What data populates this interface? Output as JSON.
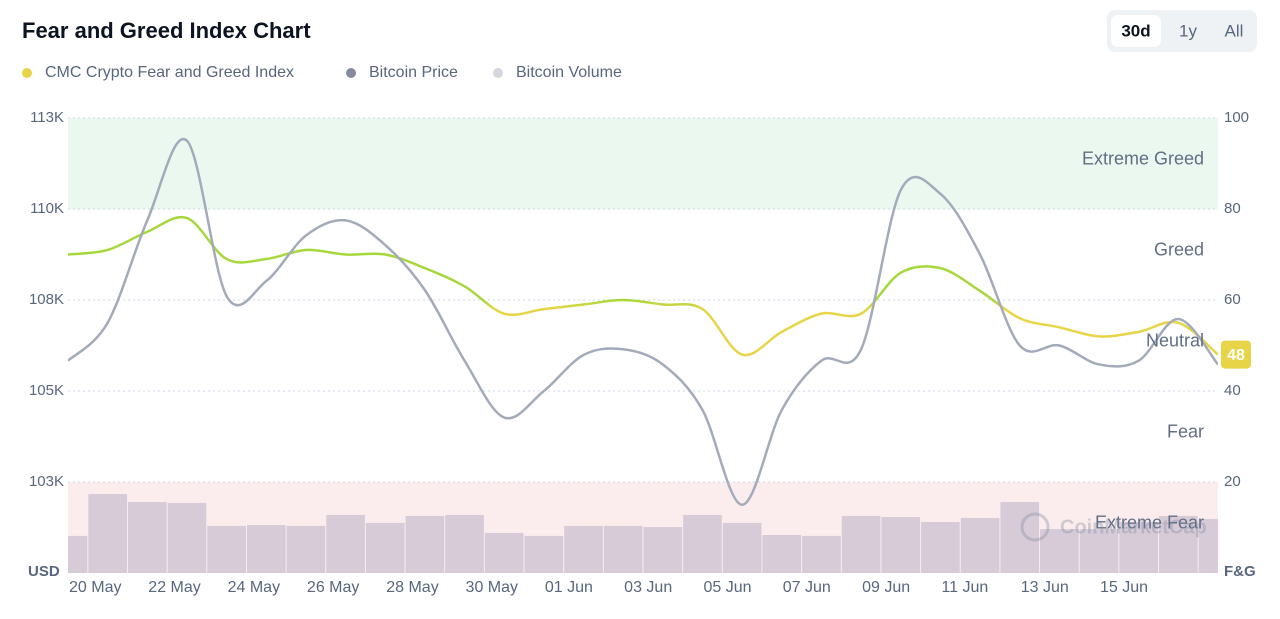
{
  "title": "Fear and Greed Index Chart",
  "range_buttons": [
    "30d",
    "1y",
    "All"
  ],
  "selected_range": 0,
  "chart_data": {
    "type": "line",
    "categories": [
      "20 May",
      null,
      "22 May",
      null,
      "24 May",
      null,
      "26 May",
      null,
      "28 May",
      null,
      "30 May",
      null,
      "01 Jun",
      null,
      "03 Jun",
      null,
      "05 Jun",
      null,
      "07 Jun",
      null,
      "09 Jun",
      null,
      "11 Jun",
      null,
      "13 Jun",
      null,
      "15 Jun",
      null,
      null,
      null
    ],
    "series": [
      {
        "name": "CMC Crypto Fear and Greed Index",
        "color": "#e8d547",
        "greed_color": "#a6d83c",
        "axis": "y2",
        "values": [
          70,
          71,
          75,
          78,
          69,
          69,
          71,
          70,
          70,
          67,
          63,
          57,
          58,
          59,
          60,
          59,
          58,
          48,
          53,
          57,
          57,
          66,
          67,
          62,
          56,
          54,
          52,
          53,
          55,
          48
        ]
      },
      {
        "name": "Bitcoin Price",
        "color": "#a3abbb",
        "legend_color": "#858b9e",
        "values": [
          106200,
          107200,
          109900,
          112000,
          107900,
          108300,
          109500,
          109900,
          109250,
          108060,
          106200,
          104700,
          105400,
          106350,
          106500,
          106100,
          104900,
          102400,
          104900,
          106200,
          106500,
          110700,
          110600,
          109000,
          106600,
          106600,
          106100,
          106200,
          107300,
          106100
        ]
      },
      {
        "name": "Bitcoin Volume",
        "type": "bar",
        "color": "#d7cbd8",
        "legend_color": "#d3d7e0",
        "axis": "y3",
        "values": [
          16.3,
          34.7,
          31.2,
          30.8,
          20.7,
          21.1,
          20.7,
          25.5,
          22,
          25.1,
          25.5,
          17.6,
          16.3,
          20.7,
          20.7,
          20.2,
          25.5,
          22,
          16.7,
          16.3,
          25.1,
          24.6,
          22.4,
          24.2,
          31.2,
          19.3,
          19.3,
          22.4,
          25.1,
          23.7
        ]
      }
    ],
    "ylim": [
      100600,
      112600
    ],
    "yticks": [
      {
        "value": 103000,
        "label": "103K"
      },
      {
        "value": 105400,
        "label": "105K"
      },
      {
        "value": 107800,
        "label": "108K"
      },
      {
        "value": 110200,
        "label": "110K"
      },
      {
        "value": 112600,
        "label": "113K"
      }
    ],
    "y2lim": [
      0,
      100
    ],
    "y2ticks": [
      20,
      40,
      60,
      80,
      100
    ],
    "y3lim": [
      0,
      200
    ],
    "zones": [
      "Extreme Fear",
      "Fear",
      "Neutral",
      "Greed",
      "Extreme Greed"
    ],
    "zone_colors": [
      "#fbeced",
      null,
      null,
      null,
      "#ebf8ef"
    ],
    "y_unit_label": "USD",
    "y2_unit_label": "F&G",
    "watermark": "CoinMarketCap",
    "grid": true
  }
}
